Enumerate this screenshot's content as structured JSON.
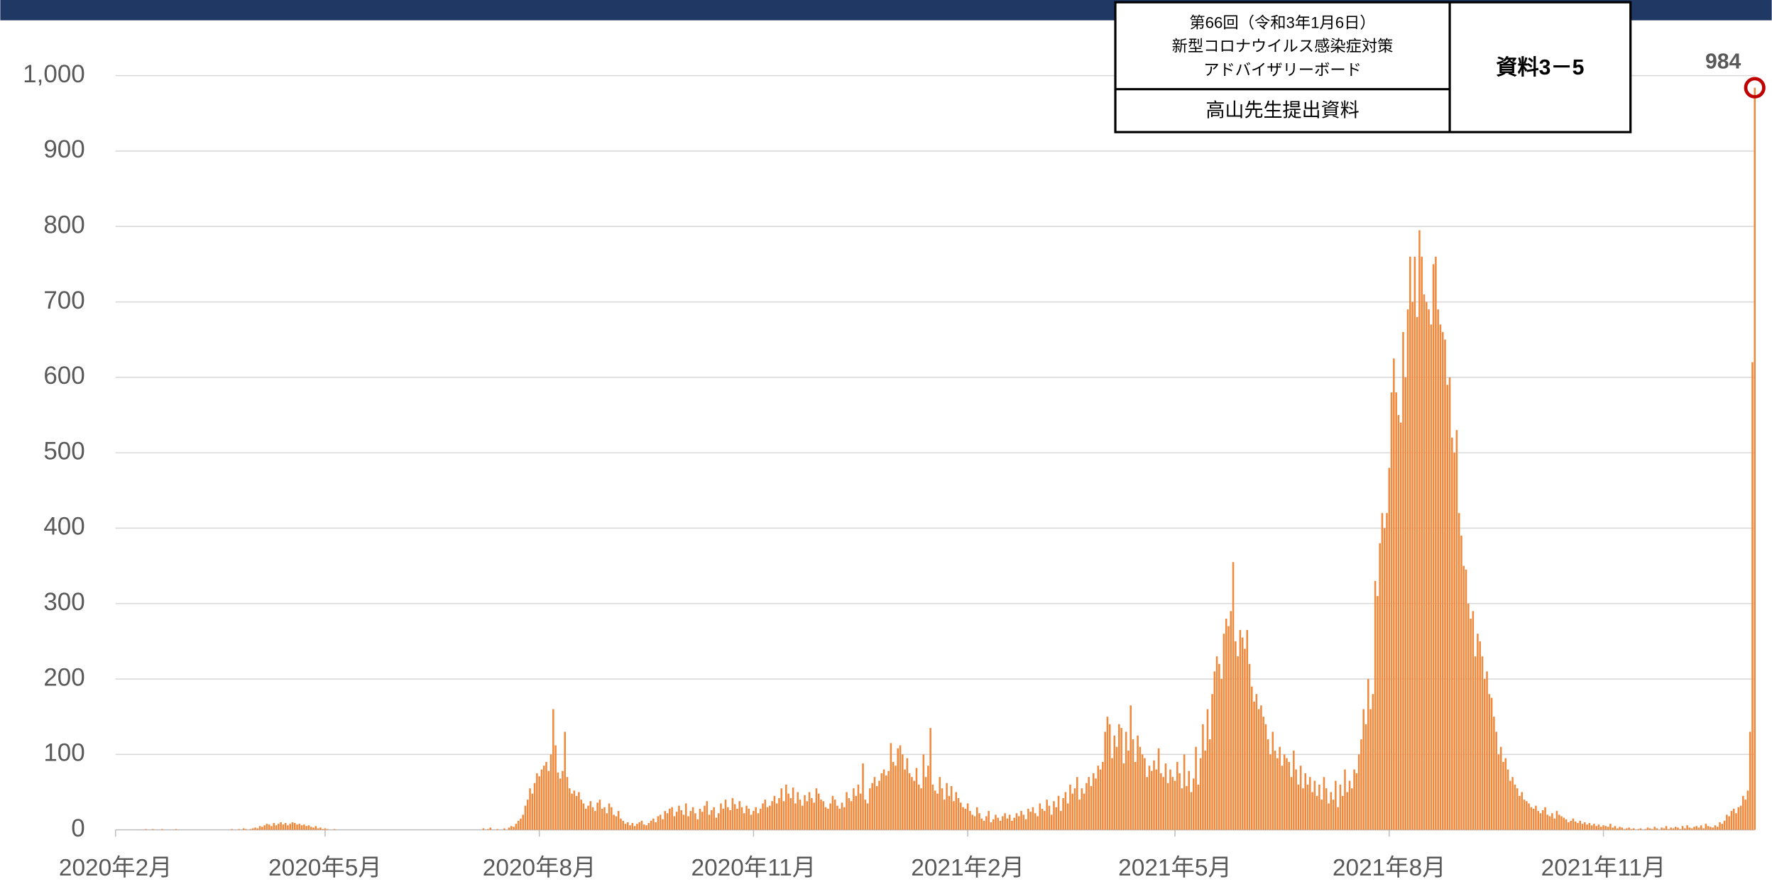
{
  "header": {
    "meeting": "第66回（令和3年1月6日）",
    "committee": "新型コロナウイルス感染症対策",
    "board": "アドバイザリーボード",
    "presenter": "高山先生提出資料",
    "doc_id": "資料3－5"
  },
  "chart_data": {
    "type": "bar",
    "color": "#f0893c",
    "grid": true,
    "ylim": [
      0,
      1000
    ],
    "yticks": [
      0,
      100,
      200,
      300,
      400,
      500,
      600,
      700,
      800,
      900,
      {
        "value": 1000,
        "label": "1,000"
      }
    ],
    "highlight_last": {
      "color": "#c00000"
    },
    "categories": [
      "2020年2月",
      null,
      null,
      null,
      null,
      null,
      null,
      null,
      null,
      null,
      null,
      null,
      null,
      null,
      null,
      null,
      null,
      null,
      null,
      null,
      null,
      null,
      null,
      null,
      null,
      null,
      null,
      null,
      null,
      null,
      null,
      null,
      null,
      null,
      null,
      null,
      null,
      null,
      null,
      null,
      null,
      null,
      null,
      null,
      null,
      null,
      null,
      null,
      null,
      null,
      null,
      null,
      null,
      null,
      null,
      null,
      null,
      null,
      null,
      null,
      null,
      null,
      null,
      null,
      null,
      null,
      null,
      null,
      null,
      null,
      null,
      null,
      null,
      null,
      null,
      null,
      null,
      null,
      null,
      null,
      null,
      null,
      null,
      null,
      null,
      null,
      null,
      null,
      null,
      null,
      "2020年5月",
      null,
      null,
      null,
      null,
      null,
      null,
      null,
      null,
      null,
      null,
      null,
      null,
      null,
      null,
      null,
      null,
      null,
      null,
      null,
      null,
      null,
      null,
      null,
      null,
      null,
      null,
      null,
      null,
      null,
      null,
      null,
      null,
      null,
      null,
      null,
      null,
      null,
      null,
      null,
      null,
      null,
      null,
      null,
      null,
      null,
      null,
      null,
      null,
      null,
      null,
      null,
      null,
      null,
      null,
      null,
      null,
      null,
      null,
      null,
      null,
      null,
      null,
      null,
      null,
      null,
      null,
      null,
      null,
      null,
      null,
      null,
      null,
      null,
      null,
      null,
      null,
      null,
      null,
      null,
      null,
      null,
      null,
      null,
      null,
      null,
      null,
      null,
      null,
      null,
      null,
      null,
      "2020年8月",
      null,
      null,
      null,
      null,
      null,
      null,
      null,
      null,
      null,
      null,
      null,
      null,
      null,
      null,
      null,
      null,
      null,
      null,
      null,
      null,
      null,
      null,
      null,
      null,
      null,
      null,
      null,
      null,
      null,
      null,
      null,
      null,
      null,
      null,
      null,
      null,
      null,
      null,
      null,
      null,
      null,
      null,
      null,
      null,
      null,
      null,
      null,
      null,
      null,
      null,
      null,
      null,
      null,
      null,
      null,
      null,
      null,
      null,
      null,
      null,
      null,
      null,
      null,
      null,
      null,
      null,
      null,
      null,
      null,
      null,
      null,
      null,
      null,
      null,
      null,
      null,
      null,
      null,
      null,
      null,
      null,
      null,
      null,
      null,
      null,
      null,
      null,
      null,
      null,
      null,
      null,
      "2020年11月",
      null,
      null,
      null,
      null,
      null,
      null,
      null,
      null,
      null,
      null,
      null,
      null,
      null,
      null,
      null,
      null,
      null,
      null,
      null,
      null,
      null,
      null,
      null,
      null,
      null,
      null,
      null,
      null,
      null,
      null,
      null,
      null,
      null,
      null,
      null,
      null,
      null,
      null,
      null,
      null,
      null,
      null,
      null,
      null,
      null,
      null,
      null,
      null,
      null,
      null,
      null,
      null,
      null,
      null,
      null,
      null,
      null,
      null,
      null,
      null,
      null,
      null,
      null,
      null,
      null,
      null,
      null,
      null,
      null,
      null,
      null,
      null,
      null,
      null,
      null,
      null,
      null,
      null,
      null,
      null,
      null,
      null,
      null,
      null,
      null,
      null,
      null,
      null,
      null,
      null,
      null,
      "2021年2月",
      null,
      null,
      null,
      null,
      null,
      null,
      null,
      null,
      null,
      null,
      null,
      null,
      null,
      null,
      null,
      null,
      null,
      null,
      null,
      null,
      null,
      null,
      null,
      null,
      null,
      null,
      null,
      null,
      null,
      null,
      null,
      null,
      null,
      null,
      null,
      null,
      null,
      null,
      null,
      null,
      null,
      null,
      null,
      null,
      null,
      null,
      null,
      null,
      null,
      null,
      null,
      null,
      null,
      null,
      null,
      null,
      null,
      null,
      null,
      null,
      null,
      null,
      null,
      null,
      null,
      null,
      null,
      null,
      null,
      null,
      null,
      null,
      null,
      null,
      null,
      null,
      null,
      null,
      null,
      null,
      null,
      null,
      null,
      null,
      null,
      null,
      null,
      null,
      "2021年5月",
      null,
      null,
      null,
      null,
      null,
      null,
      null,
      null,
      null,
      null,
      null,
      null,
      null,
      null,
      null,
      null,
      null,
      null,
      null,
      null,
      null,
      null,
      null,
      null,
      null,
      null,
      null,
      null,
      null,
      null,
      null,
      null,
      null,
      null,
      null,
      null,
      null,
      null,
      null,
      null,
      null,
      null,
      null,
      null,
      null,
      null,
      null,
      null,
      null,
      null,
      null,
      null,
      null,
      null,
      null,
      null,
      null,
      null,
      null,
      null,
      null,
      null,
      null,
      null,
      null,
      null,
      null,
      null,
      null,
      null,
      null,
      null,
      null,
      null,
      null,
      null,
      null,
      null,
      null,
      null,
      null,
      null,
      null,
      null,
      null,
      null,
      null,
      null,
      null,
      null,
      null,
      "2021年8月",
      null,
      null,
      null,
      null,
      null,
      null,
      null,
      null,
      null,
      null,
      null,
      null,
      null,
      null,
      null,
      null,
      null,
      null,
      null,
      null,
      null,
      null,
      null,
      null,
      null,
      null,
      null,
      null,
      null,
      null,
      null,
      null,
      null,
      null,
      null,
      null,
      null,
      null,
      null,
      null,
      null,
      null,
      null,
      null,
      null,
      null,
      null,
      null,
      null,
      null,
      null,
      null,
      null,
      null,
      null,
      null,
      null,
      null,
      null,
      null,
      null,
      null,
      null,
      null,
      null,
      null,
      null,
      null,
      null,
      null,
      null,
      null,
      null,
      null,
      null,
      null,
      null,
      null,
      null,
      null,
      null,
      null,
      null,
      null,
      null,
      null,
      null,
      null,
      null,
      null,
      null,
      "2021年11月",
      null,
      null,
      null,
      null,
      null,
      null,
      null,
      null,
      null,
      null,
      null,
      null,
      null,
      null,
      null,
      null,
      null,
      null,
      null,
      null,
      null,
      null,
      null,
      null,
      null,
      null,
      null,
      null,
      null,
      null,
      null,
      null,
      null,
      null,
      null,
      null,
      null,
      null,
      null,
      null,
      null,
      null,
      null,
      null,
      null,
      null,
      null,
      null,
      null,
      null,
      null,
      null,
      null,
      null,
      null,
      null,
      null,
      null,
      null,
      null,
      null,
      null,
      null,
      null,
      null
    ],
    "values": [
      0,
      0,
      0,
      0,
      0,
      0,
      0,
      0,
      0,
      0,
      0,
      0,
      0,
      1,
      0,
      0,
      1,
      0,
      0,
      0,
      1,
      0,
      0,
      0,
      0,
      0,
      1,
      0,
      0,
      0,
      0,
      0,
      0,
      0,
      0,
      0,
      0,
      0,
      0,
      0,
      0,
      0,
      0,
      0,
      0,
      0,
      0,
      0,
      0,
      0,
      1,
      0,
      0,
      1,
      0,
      2,
      1,
      0,
      1,
      2,
      3,
      2,
      5,
      4,
      6,
      8,
      7,
      5,
      9,
      6,
      8,
      10,
      7,
      9,
      6,
      8,
      10,
      9,
      7,
      8,
      6,
      7,
      5,
      6,
      4,
      3,
      5,
      2,
      3,
      1,
      2,
      1,
      0,
      0,
      1,
      0,
      0,
      0,
      0,
      0,
      0,
      0,
      0,
      0,
      0,
      0,
      0,
      0,
      0,
      0,
      0,
      0,
      0,
      0,
      0,
      0,
      0,
      0,
      0,
      0,
      0,
      0,
      0,
      0,
      0,
      0,
      0,
      0,
      0,
      0,
      0,
      0,
      0,
      0,
      0,
      0,
      0,
      0,
      0,
      0,
      0,
      0,
      0,
      0,
      0,
      0,
      0,
      0,
      0,
      0,
      0,
      0,
      0,
      0,
      0,
      0,
      0,
      0,
      2,
      0,
      1,
      3,
      0,
      0,
      1,
      0,
      0,
      2,
      0,
      3,
      5,
      4,
      8,
      12,
      15,
      20,
      32,
      40,
      55,
      48,
      62,
      75,
      71,
      80,
      85,
      90,
      78,
      100,
      160,
      112,
      76,
      68,
      78,
      130,
      70,
      55,
      48,
      52,
      45,
      50,
      40,
      35,
      28,
      32,
      38,
      30,
      25,
      36,
      40,
      28,
      30,
      22,
      35,
      30,
      20,
      18,
      25,
      15,
      12,
      8,
      10,
      6,
      9,
      5,
      8,
      10,
      12,
      7,
      6,
      9,
      12,
      15,
      10,
      18,
      20,
      14,
      25,
      22,
      28,
      30,
      18,
      24,
      32,
      26,
      20,
      35,
      18,
      25,
      30,
      22,
      14,
      28,
      24,
      32,
      38,
      20,
      26,
      30,
      16,
      22,
      35,
      28,
      40,
      30,
      26,
      42,
      34,
      28,
      38,
      30,
      22,
      32,
      28,
      20,
      25,
      30,
      22,
      28,
      35,
      40,
      30,
      32,
      38,
      45,
      35,
      42,
      55,
      38,
      60,
      48,
      42,
      56,
      35,
      50,
      40,
      32,
      46,
      38,
      50,
      42,
      36,
      55,
      48,
      40,
      38,
      30,
      28,
      35,
      45,
      40,
      32,
      28,
      36,
      30,
      50,
      42,
      38,
      55,
      45,
      60,
      48,
      88,
      40,
      35,
      55,
      62,
      70,
      58,
      65,
      75,
      80,
      72,
      78,
      115,
      90,
      85,
      108,
      112,
      100,
      80,
      95,
      75,
      70,
      65,
      82,
      60,
      55,
      100,
      70,
      85,
      135,
      60,
      52,
      48,
      70,
      55,
      40,
      62,
      45,
      58,
      38,
      50,
      42,
      36,
      30,
      28,
      35,
      25,
      20,
      18,
      30,
      22,
      15,
      12,
      18,
      25,
      10,
      14,
      20,
      16,
      12,
      18,
      22,
      15,
      20,
      12,
      16,
      22,
      18,
      25,
      20,
      14,
      28,
      24,
      30,
      22,
      18,
      35,
      28,
      25,
      40,
      32,
      20,
      38,
      30,
      45,
      25,
      42,
      50,
      35,
      60,
      48,
      55,
      70,
      40,
      55,
      48,
      62,
      70,
      58,
      75,
      68,
      85,
      80,
      90,
      130,
      150,
      140,
      95,
      125,
      110,
      140,
      135,
      88,
      130,
      105,
      165,
      120,
      90,
      125,
      110,
      100,
      95,
      70,
      85,
      78,
      92,
      80,
      108,
      75,
      70,
      88,
      62,
      80,
      70,
      65,
      90,
      75,
      55,
      100,
      58,
      78,
      50,
      68,
      110,
      60,
      95,
      140,
      105,
      160,
      120,
      180,
      210,
      230,
      220,
      200,
      260,
      280,
      270,
      290,
      355,
      250,
      230,
      265,
      255,
      240,
      265,
      220,
      190,
      170,
      180,
      160,
      165,
      150,
      140,
      120,
      100,
      130,
      105,
      95,
      110,
      85,
      100,
      95,
      90,
      70,
      105,
      80,
      60,
      85,
      55,
      75,
      60,
      70,
      50,
      65,
      45,
      60,
      40,
      70,
      55,
      35,
      50,
      40,
      65,
      30,
      60,
      45,
      80,
      50,
      65,
      55,
      80,
      75,
      100,
      120,
      160,
      140,
      200,
      160,
      180,
      330,
      310,
      380,
      420,
      400,
      420,
      480,
      580,
      625,
      580,
      550,
      540,
      660,
      600,
      690,
      760,
      700,
      760,
      680,
      795,
      760,
      710,
      700,
      690,
      670,
      750,
      760,
      690,
      670,
      660,
      650,
      590,
      600,
      520,
      500,
      530,
      420,
      390,
      350,
      345,
      300,
      280,
      290,
      230,
      260,
      250,
      230,
      200,
      210,
      180,
      175,
      150,
      130,
      100,
      110,
      90,
      95,
      80,
      65,
      70,
      60,
      55,
      45,
      50,
      40,
      38,
      35,
      30,
      28,
      32,
      25,
      22,
      26,
      30,
      20,
      18,
      22,
      15,
      25,
      20,
      18,
      16,
      14,
      10,
      12,
      15,
      11,
      9,
      12,
      8,
      10,
      7,
      9,
      6,
      8,
      5,
      7,
      4,
      6,
      5,
      4,
      8,
      3,
      5,
      2,
      4,
      3,
      1,
      2,
      3,
      1,
      2,
      0,
      1,
      2,
      0,
      1,
      3,
      2,
      1,
      4,
      2,
      0,
      3,
      2,
      5,
      1,
      3,
      2,
      4,
      3,
      1,
      5,
      2,
      6,
      3,
      2,
      4,
      5,
      3,
      6,
      2,
      8,
      5,
      4,
      3,
      6,
      4,
      10,
      8,
      12,
      20,
      18,
      25,
      28,
      22,
      30,
      32,
      45,
      40,
      52,
      130,
      620,
      984
    ]
  }
}
